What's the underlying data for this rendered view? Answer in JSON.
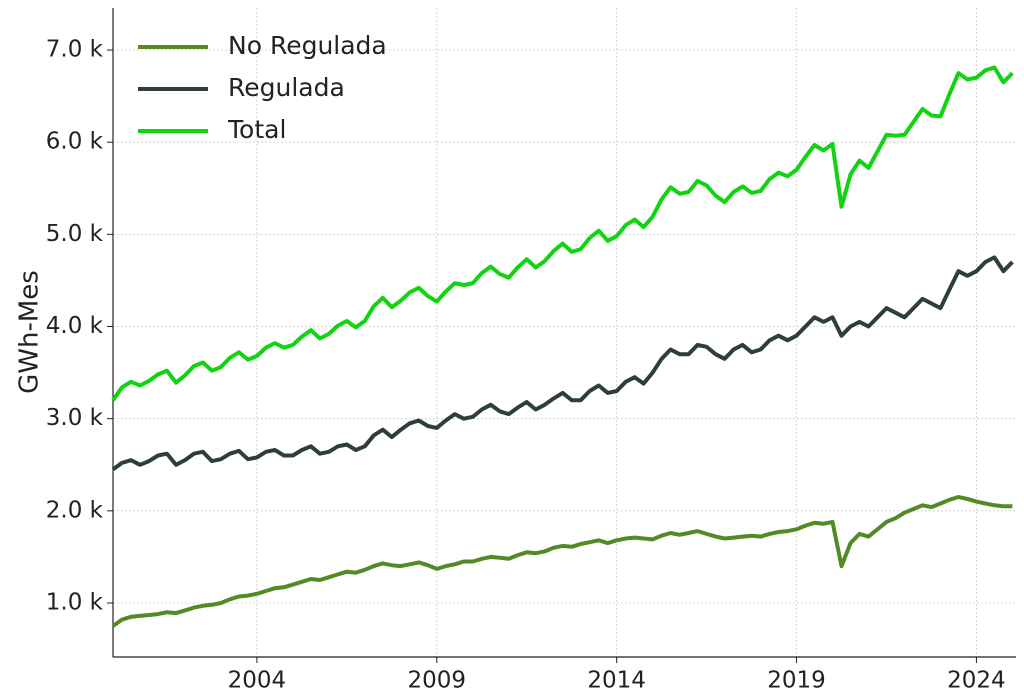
{
  "chart_data": {
    "type": "line",
    "y_label": "GWh-Mes",
    "x": [
      2000,
      2000.25,
      2000.5,
      2000.75,
      2001,
      2001.25,
      2001.5,
      2001.75,
      2002,
      2002.25,
      2002.5,
      2002.75,
      2003,
      2003.25,
      2003.5,
      2003.75,
      2004,
      2004.25,
      2004.5,
      2004.75,
      2005,
      2005.25,
      2005.5,
      2005.75,
      2006,
      2006.25,
      2006.5,
      2006.75,
      2007,
      2007.25,
      2007.5,
      2007.75,
      2008,
      2008.25,
      2008.5,
      2008.75,
      2009,
      2009.25,
      2009.5,
      2009.75,
      2010,
      2010.25,
      2010.5,
      2010.75,
      2011,
      2011.25,
      2011.5,
      2011.75,
      2012,
      2012.25,
      2012.5,
      2012.75,
      2013,
      2013.25,
      2013.5,
      2013.75,
      2014,
      2014.25,
      2014.5,
      2014.75,
      2015,
      2015.25,
      2015.5,
      2015.75,
      2016,
      2016.25,
      2016.5,
      2016.75,
      2017,
      2017.25,
      2017.5,
      2017.75,
      2018,
      2018.25,
      2018.5,
      2018.75,
      2019,
      2019.25,
      2019.5,
      2019.75,
      2020,
      2020.25,
      2020.5,
      2020.75,
      2021,
      2021.25,
      2021.5,
      2021.75,
      2022,
      2022.25,
      2022.5,
      2022.75,
      2023,
      2023.25,
      2023.5,
      2023.75,
      2024,
      2024.25,
      2024.5,
      2024.75,
      2025
    ],
    "series": [
      {
        "name": "No Regulada",
        "color": "#548a24",
        "values": [
          750,
          820,
          850,
          860,
          870,
          880,
          900,
          890,
          920,
          950,
          970,
          980,
          1000,
          1040,
          1070,
          1080,
          1100,
          1130,
          1160,
          1170,
          1200,
          1230,
          1260,
          1250,
          1280,
          1310,
          1340,
          1330,
          1360,
          1400,
          1430,
          1410,
          1400,
          1420,
          1440,
          1410,
          1370,
          1400,
          1420,
          1450,
          1450,
          1480,
          1500,
          1490,
          1480,
          1520,
          1550,
          1540,
          1560,
          1600,
          1620,
          1610,
          1640,
          1660,
          1680,
          1650,
          1680,
          1700,
          1710,
          1700,
          1690,
          1730,
          1760,
          1740,
          1760,
          1780,
          1750,
          1720,
          1700,
          1710,
          1720,
          1730,
          1720,
          1750,
          1770,
          1780,
          1800,
          1840,
          1870,
          1860,
          1880,
          1400,
          1650,
          1750,
          1720,
          1800,
          1880,
          1920,
          1980,
          2020,
          2060,
          2040,
          2080,
          2120,
          2150,
          2130,
          2100,
          2080,
          2060,
          2050,
          2050
        ]
      },
      {
        "name": "Regulada",
        "color": "#2d3f38",
        "values": [
          2450,
          2520,
          2550,
          2500,
          2540,
          2600,
          2620,
          2500,
          2550,
          2620,
          2640,
          2540,
          2560,
          2620,
          2650,
          2560,
          2580,
          2640,
          2660,
          2600,
          2600,
          2660,
          2700,
          2620,
          2640,
          2700,
          2720,
          2660,
          2700,
          2820,
          2880,
          2800,
          2880,
          2950,
          2980,
          2920,
          2900,
          2980,
          3050,
          3000,
          3020,
          3100,
          3150,
          3080,
          3050,
          3120,
          3180,
          3100,
          3150,
          3220,
          3280,
          3200,
          3200,
          3300,
          3360,
          3280,
          3300,
          3400,
          3450,
          3380,
          3500,
          3650,
          3750,
          3700,
          3700,
          3800,
          3780,
          3700,
          3650,
          3750,
          3800,
          3720,
          3750,
          3850,
          3900,
          3850,
          3900,
          4000,
          4100,
          4050,
          4100,
          3900,
          4000,
          4050,
          4000,
          4100,
          4200,
          4150,
          4100,
          4200,
          4300,
          4250,
          4200,
          4400,
          4600,
          4550,
          4600,
          4700,
          4750,
          4600,
          4700
        ]
      },
      {
        "name": "Total",
        "color": "#11d411",
        "values": [
          3200,
          3340,
          3400,
          3360,
          3410,
          3480,
          3520,
          3390,
          3470,
          3570,
          3610,
          3520,
          3560,
          3660,
          3720,
          3640,
          3680,
          3770,
          3820,
          3770,
          3800,
          3890,
          3960,
          3870,
          3920,
          4010,
          4060,
          3990,
          4060,
          4220,
          4310,
          4210,
          4280,
          4370,
          4420,
          4330,
          4270,
          4380,
          4470,
          4450,
          4470,
          4580,
          4650,
          4570,
          4530,
          4640,
          4730,
          4640,
          4710,
          4820,
          4900,
          4810,
          4840,
          4960,
          5040,
          4930,
          4980,
          5100,
          5160,
          5080,
          5190,
          5380,
          5510,
          5440,
          5460,
          5580,
          5530,
          5420,
          5350,
          5460,
          5520,
          5450,
          5470,
          5600,
          5670,
          5630,
          5700,
          5840,
          5970,
          5910,
          5980,
          5300,
          5650,
          5800,
          5720,
          5900,
          6080,
          6070,
          6080,
          6220,
          6360,
          6290,
          6280,
          6520,
          6750,
          6680,
          6700,
          6780,
          6810,
          6650,
          6750
        ]
      }
    ],
    "xlim": [
      2000,
      2025.1
    ],
    "xticks": [
      2004,
      2009,
      2014,
      2019,
      2024
    ],
    "ylim": [
      414,
      7456
    ],
    "yticks": [
      {
        "value": 1000,
        "label": "1.0 k"
      },
      {
        "value": 2000,
        "label": "2.0 k"
      },
      {
        "value": 3000,
        "label": "3.0 k"
      },
      {
        "value": 4000,
        "label": "4.0 k"
      },
      {
        "value": 5000,
        "label": "5.0 k"
      },
      {
        "value": 6000,
        "label": "6.0 k"
      },
      {
        "value": 7000,
        "label": "7.0 k"
      }
    ],
    "grid": true,
    "legend": "upper-left"
  }
}
